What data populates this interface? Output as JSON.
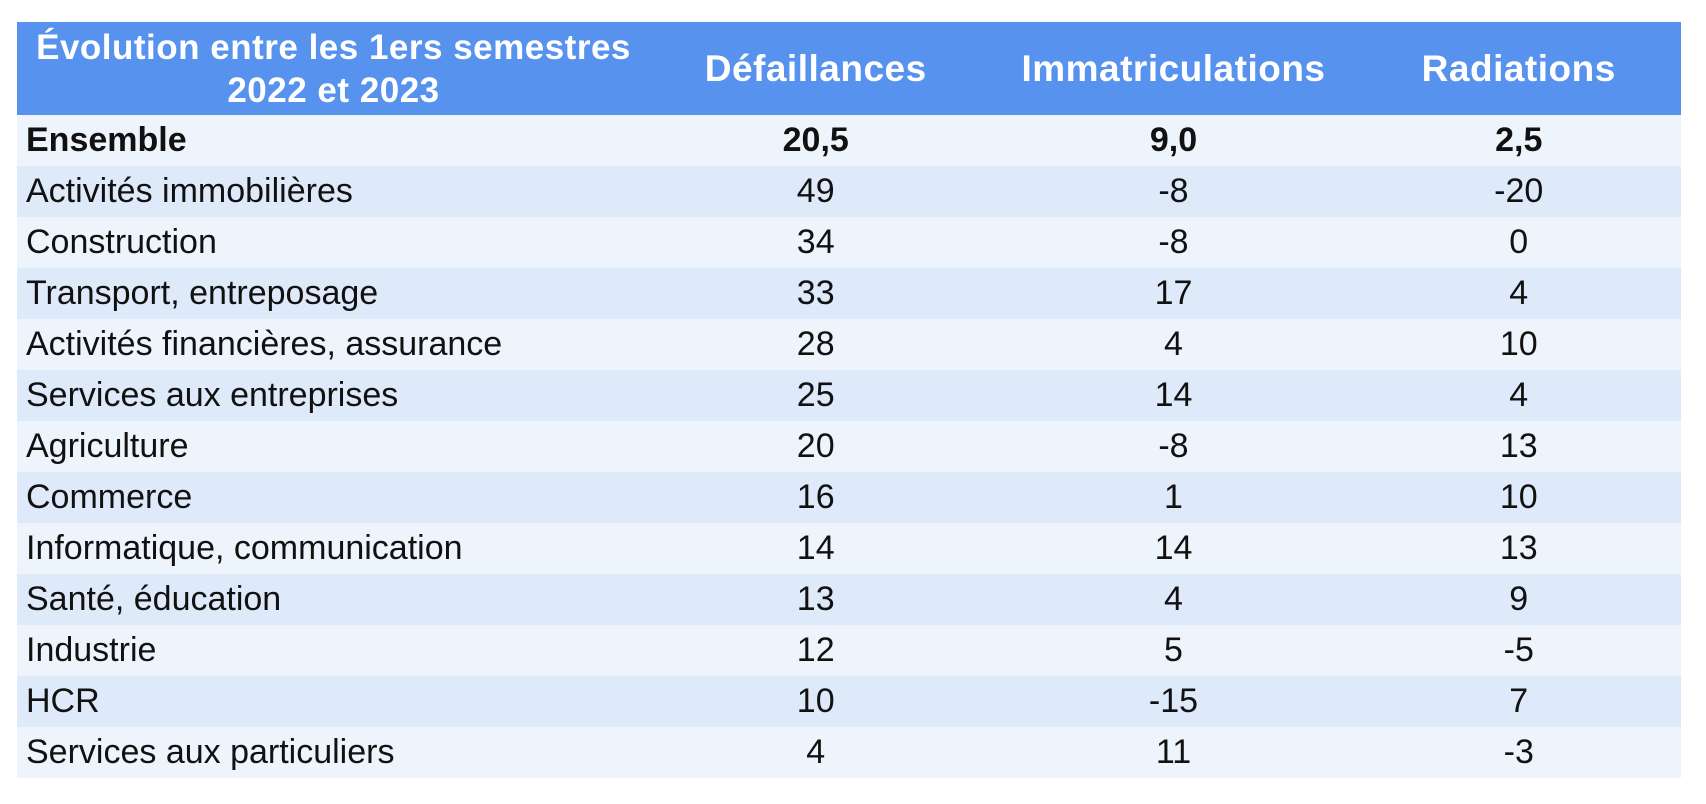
{
  "header": {
    "title_line1": "Évolution entre les 1ers semestres",
    "title_line2": "2022 et 2023"
  },
  "colors": {
    "header_bg": "#5792ee",
    "header_text": "#ffffff",
    "row_light": "#eef4fc",
    "row_dark": "#dee9fa",
    "body_text": "#111111"
  },
  "chart_data": {
    "type": "table",
    "title": "Évolution entre les 1ers semestres 2022 et 2023",
    "columns": [
      "Défaillances",
      "Immatriculations",
      "Radiations"
    ],
    "rows": [
      {
        "label": "Ensemble",
        "values": [
          "20,5",
          "9,0",
          "2,5"
        ]
      },
      {
        "label": "Activités immobilières",
        "values": [
          "49",
          "-8",
          "-20"
        ]
      },
      {
        "label": "Construction",
        "values": [
          "34",
          "-8",
          "0"
        ]
      },
      {
        "label": "Transport, entreposage",
        "values": [
          "33",
          "17",
          "4"
        ]
      },
      {
        "label": "Activités financières, assurance",
        "values": [
          "28",
          "4",
          "10"
        ]
      },
      {
        "label": "Services aux entreprises",
        "values": [
          "25",
          "14",
          "4"
        ]
      },
      {
        "label": "Agriculture",
        "values": [
          "20",
          "-8",
          "13"
        ]
      },
      {
        "label": "Commerce",
        "values": [
          "16",
          "1",
          "10"
        ]
      },
      {
        "label": "Informatique, communication",
        "values": [
          "14",
          "14",
          "13"
        ]
      },
      {
        "label": "Santé, éducation",
        "values": [
          "13",
          "4",
          "9"
        ]
      },
      {
        "label": "Industrie",
        "values": [
          "12",
          "5",
          "-5"
        ]
      },
      {
        "label": "HCR",
        "values": [
          "10",
          "-15",
          "7"
        ]
      },
      {
        "label": "Services aux particuliers",
        "values": [
          "4",
          "11",
          "-3"
        ]
      }
    ]
  }
}
